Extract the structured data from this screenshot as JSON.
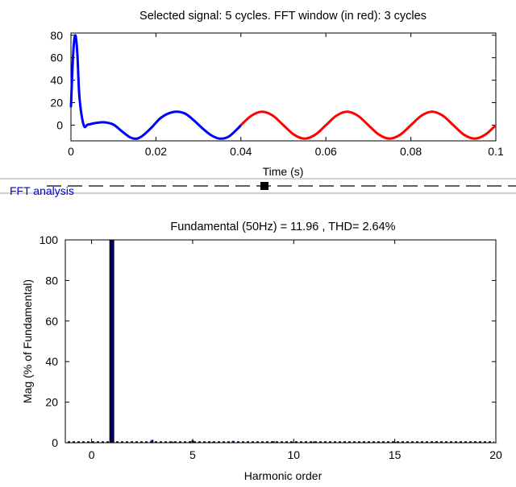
{
  "colors": {
    "signal": "#0000ff",
    "fft_window": "#ff0000",
    "bars": "#000066",
    "panel_line": "#a0a0a0",
    "group_label": "#0000cc"
  },
  "panel": {
    "group_label": "FFT analysis"
  },
  "chart_data": [
    {
      "type": "line",
      "title": "Selected signal: 5 cycles. FFT window (in red): 3 cycles",
      "xlabel": "Time (s)",
      "ylabel": "",
      "xlim": [
        0,
        0.1
      ],
      "ylim": [
        -14,
        82
      ],
      "xticks": [
        0,
        0.02,
        0.04,
        0.06,
        0.08,
        0.1
      ],
      "xtick_labels": [
        "0",
        "0.02",
        "0.04",
        "0.06",
        "0.08",
        "0.1"
      ],
      "yticks": [
        0,
        20,
        40,
        60,
        80
      ],
      "ytick_labels": [
        "0",
        "20",
        "40",
        "60",
        "80"
      ],
      "grid": false,
      "series": [
        {
          "role": "selected signal (blue)",
          "color": "blue",
          "x": [
            0,
            0.0005,
            0.001,
            0.0015,
            0.002,
            0.003,
            0.004,
            0.006,
            0.008,
            0.01,
            0.012,
            0.014,
            0.0155,
            0.017,
            0.019,
            0.021,
            0.023,
            0.025,
            0.027,
            0.029,
            0.031,
            0.033,
            0.035,
            0.037,
            0.039,
            0.04
          ],
          "y": [
            16,
            62,
            80,
            64,
            25,
            0,
            0.5,
            2,
            2.5,
            0.5,
            -5.5,
            -11,
            -12,
            -9,
            -2,
            6,
            10.5,
            12,
            10,
            4,
            -3,
            -9,
            -12,
            -10.5,
            -4,
            0
          ]
        },
        {
          "role": "FFT window (red)",
          "color": "red",
          "x": [
            0.04,
            0.0425,
            0.045,
            0.0475,
            0.05,
            0.0525,
            0.055,
            0.0575,
            0.06,
            0.0625,
            0.065,
            0.0675,
            0.07,
            0.0725,
            0.075,
            0.0775,
            0.08,
            0.0825,
            0.085,
            0.0875,
            0.09,
            0.0925,
            0.095,
            0.0975,
            0.1
          ],
          "y": [
            0,
            8.5,
            12,
            8.5,
            0,
            -8.5,
            -12,
            -8.5,
            0,
            8.5,
            12,
            8.5,
            0,
            -8.5,
            -12,
            -8.5,
            0,
            8.5,
            12,
            8.5,
            0,
            -8.5,
            -12,
            -8.5,
            0
          ]
        }
      ]
    },
    {
      "type": "bar",
      "title": "Fundamental (50Hz) = 11.96 , THD= 2.64%",
      "xlabel": "Harmonic order",
      "ylabel": "Mag (% of Fundamental)",
      "xlim": [
        -1.3,
        20
      ],
      "ylim": [
        0,
        100
      ],
      "xticks": [
        0,
        5,
        10,
        15,
        20
      ],
      "xtick_labels": [
        "0",
        "5",
        "10",
        "15",
        "20"
      ],
      "yticks": [
        0,
        20,
        40,
        60,
        80,
        100
      ],
      "ytick_labels": [
        "0",
        "20",
        "40",
        "60",
        "80",
        "100"
      ],
      "grid": false,
      "x": [
        0,
        1,
        2,
        3,
        4,
        5,
        6,
        7,
        8,
        9,
        10,
        11,
        12,
        13,
        14,
        15,
        16,
        17,
        18,
        19,
        20
      ],
      "values": [
        0.3,
        100,
        0.5,
        1.4,
        0.5,
        1.2,
        0.4,
        0.9,
        0.3,
        0.7,
        0.3,
        0.6,
        0.2,
        0.5,
        0.2,
        0.4,
        0.2,
        0.3,
        0.1,
        0.3,
        0.1
      ]
    }
  ]
}
